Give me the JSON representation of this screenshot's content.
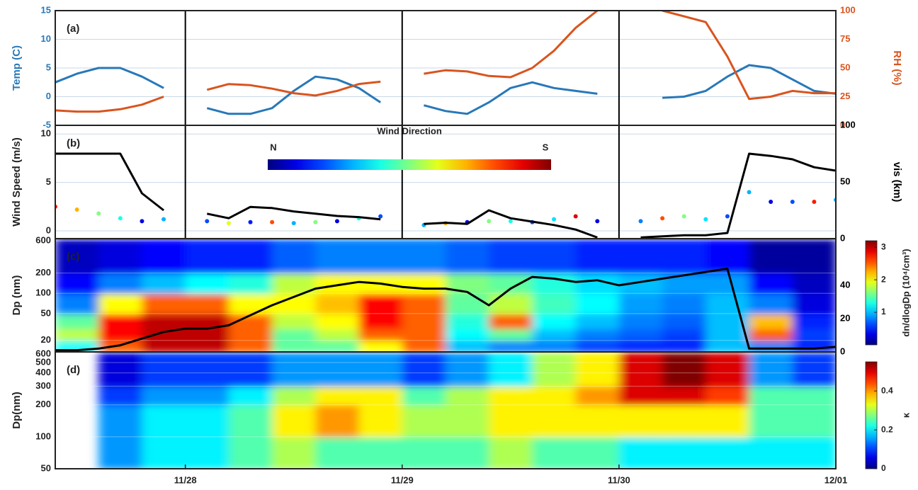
{
  "chart_data": [
    {
      "type": "line",
      "panel_label": "(a)",
      "ylabel": "Temp (C)",
      "y2label": "RH (%)",
      "day_lines": true,
      "xlim": [
        27.4,
        31.0
      ],
      "ylim": [
        -5,
        15
      ],
      "yticks": [
        -5,
        0,
        5,
        10,
        15
      ],
      "y2lim": [
        0,
        100
      ],
      "y2ticks": [
        0,
        25,
        50,
        75,
        100
      ],
      "grid": true,
      "x": [
        27.4,
        27.5,
        27.6,
        27.7,
        27.8,
        27.9,
        28.0,
        28.1,
        28.2,
        28.3,
        28.4,
        28.5,
        28.6,
        28.7,
        28.8,
        28.9,
        29.0,
        29.1,
        29.2,
        29.3,
        29.4,
        29.5,
        29.6,
        29.7,
        29.8,
        29.9,
        30.0,
        30.1,
        30.2,
        30.3,
        30.4,
        30.5,
        30.6,
        30.7,
        30.8,
        30.9,
        31.0
      ],
      "series": [
        {
          "type": "line",
          "color": "#2878b8",
          "values": [
            2.5,
            4,
            5,
            5,
            3.5,
            1.5,
            null,
            -2,
            -3,
            -3,
            -2,
            1,
            3.5,
            3,
            1.5,
            -1,
            null,
            -1.5,
            -2.5,
            -3,
            -1,
            1.5,
            2.5,
            1.5,
            1,
            0.5,
            null,
            null,
            -0.2,
            0,
            1,
            3.5,
            5.5,
            5,
            3,
            1,
            0.5
          ]
        },
        {
          "type": "line",
          "axis": "y2",
          "color": "#d9541e",
          "values": [
            13,
            12,
            12,
            14,
            18,
            25,
            null,
            31,
            36,
            35,
            32,
            28,
            26,
            30,
            36,
            38,
            null,
            45,
            48,
            47,
            43,
            42,
            50,
            65,
            85,
            100,
            null,
            null,
            100,
            95,
            90,
            60,
            23,
            25,
            30,
            28,
            28
          ]
        }
      ]
    },
    {
      "type": "line",
      "panel_label": "(b)",
      "ylabel": "Wind Speed (m/s)",
      "y2label": "vis (km)",
      "day_lines": true,
      "xlim": [
        27.4,
        31.0
      ],
      "ylim": [
        -0.8,
        10.9
      ],
      "yticks": [
        0,
        5,
        10
      ],
      "y2lim": [
        0,
        100
      ],
      "y2ticks": [
        0,
        50,
        100
      ],
      "grid": true,
      "colorbar": {
        "label": "Wind Direction",
        "ticks": [
          {
            "value": 0,
            "label": "N"
          },
          {
            "value": 1,
            "label": "S"
          }
        ]
      },
      "x": [
        27.4,
        27.5,
        27.6,
        27.7,
        27.8,
        27.9,
        28.0,
        28.1,
        28.2,
        28.3,
        28.4,
        28.5,
        28.6,
        28.7,
        28.8,
        28.9,
        29.0,
        29.1,
        29.2,
        29.3,
        29.4,
        29.5,
        29.6,
        29.7,
        29.8,
        29.9,
        30.0,
        30.1,
        30.2,
        30.3,
        30.4,
        30.5,
        30.6,
        30.7,
        30.8,
        30.9,
        31.0
      ],
      "series": [
        {
          "type": "scatter",
          "values": [
            2.5,
            2.2,
            1.8,
            1.3,
            1.0,
            1.2,
            null,
            1.0,
            0.8,
            0.9,
            0.9,
            0.8,
            0.9,
            1.0,
            1.3,
            1.5,
            null,
            0.6,
            0.8,
            0.9,
            1.0,
            1.0,
            0.9,
            1.2,
            1.5,
            1.0,
            null,
            1.0,
            1.3,
            1.5,
            1.2,
            1.5,
            4,
            3,
            3,
            3,
            3.2
          ],
          "color_values": [
            0.85,
            0.7,
            0.5,
            0.4,
            0.1,
            0.3,
            null,
            0.2,
            0.6,
            0.15,
            0.8,
            0.3,
            0.5,
            0.1,
            0.4,
            0.2,
            null,
            0.3,
            0.7,
            0.1,
            0.5,
            0.4,
            0.2,
            0.35,
            0.9,
            0.1,
            null,
            0.25,
            0.8,
            0.5,
            0.35,
            0.2,
            0.3,
            0.1,
            0.2,
            0.85,
            0.3
          ]
        },
        {
          "type": "line",
          "axis": "y2",
          "color": "#000000",
          "values": [
            75,
            75,
            75,
            75,
            40,
            25,
            null,
            22,
            18,
            28,
            27,
            24,
            22,
            20,
            19,
            17,
            null,
            13,
            14,
            13,
            25,
            18,
            15,
            12,
            8,
            1,
            null,
            1,
            2,
            3,
            3,
            5,
            75,
            73,
            70,
            63,
            60
          ]
        }
      ]
    },
    {
      "type": "heatmap",
      "panel_label": "(c)",
      "ylabel": "Dp (nm)",
      "log_y": true,
      "xlim": [
        27.4,
        31.0
      ],
      "ylim": [
        13.5,
        650
      ],
      "yticks": [
        20,
        50,
        100,
        200,
        600
      ],
      "y2lim": [
        0,
        68
      ],
      "y2ticks": [
        0,
        20,
        40
      ],
      "grid": true,
      "colorbar": {
        "label": "dn/dlogDp (10⁴/cm³)",
        "lim": [
          0,
          3.2
        ],
        "ticks": [
          1,
          2,
          3
        ]
      },
      "x_edges": [
        27.4,
        27.6,
        27.8,
        28.0,
        28.2,
        28.4,
        28.6,
        28.8,
        29.0,
        29.2,
        29.4,
        29.6,
        29.8,
        30.0,
        30.2,
        30.4,
        30.6,
        30.8,
        31.0
      ],
      "y_edges": [
        13.5,
        20,
        30,
        50,
        100,
        200,
        650
      ],
      "z": [
        [
          1.2,
          2.5,
          3,
          3,
          2.5,
          1.5,
          1.5,
          2,
          2.5,
          1.0,
          0.8,
          0.8,
          0.6,
          0.5,
          0.5,
          1,
          0.8,
          0.5
        ],
        [
          1.8,
          2.8,
          3,
          3,
          2.5,
          1.5,
          1.8,
          2.5,
          2.5,
          1.2,
          1.5,
          1,
          0.8,
          0.7,
          0.6,
          1,
          2.5,
          0.6
        ],
        [
          1.5,
          2.8,
          3,
          3,
          2.5,
          1.8,
          2,
          2.8,
          2.5,
          1.3,
          2.5,
          1.2,
          1,
          0.8,
          0.7,
          1,
          2.2,
          0.5
        ],
        [
          0.8,
          2,
          2.5,
          2.5,
          2,
          2,
          2.2,
          2.8,
          2.5,
          1.5,
          1.8,
          1.4,
          1.2,
          0.9,
          0.8,
          1,
          0.8,
          0.3
        ],
        [
          0.4,
          0.8,
          1,
          1.2,
          1.3,
          1.8,
          2,
          2,
          2,
          1.6,
          1.5,
          1.3,
          1.1,
          1,
          0.9,
          0.9,
          0.4,
          0.2
        ],
        [
          0.2,
          0.3,
          0.4,
          0.5,
          0.5,
          0.7,
          0.8,
          0.8,
          0.8,
          0.7,
          0.6,
          0.6,
          0.5,
          0.5,
          0.5,
          0.4,
          0.1,
          0.1
        ]
      ],
      "x": [
        27.4,
        27.5,
        27.6,
        27.7,
        27.8,
        27.9,
        28.0,
        28.1,
        28.2,
        28.3,
        28.4,
        28.5,
        28.6,
        28.7,
        28.8,
        28.9,
        29.0,
        29.1,
        29.2,
        29.3,
        29.4,
        29.5,
        29.6,
        29.7,
        29.8,
        29.9,
        30.0,
        30.1,
        30.2,
        30.3,
        30.4,
        30.5,
        30.6,
        30.7,
        30.8,
        30.9,
        31.0
      ],
      "series": [
        {
          "type": "line",
          "axis": "y2",
          "color": "#000000",
          "values": [
            1,
            1,
            2,
            4,
            8,
            12,
            14,
            14,
            16,
            22,
            28,
            33,
            38,
            40,
            42,
            41,
            39,
            38,
            38,
            36,
            28,
            38,
            45,
            44,
            42,
            43,
            40,
            42,
            44,
            46,
            48,
            50,
            2,
            2,
            2,
            2,
            3
          ]
        }
      ]
    },
    {
      "type": "heatmap",
      "panel_label": "(d)",
      "ylabel": "Dp(nm)",
      "log_y": true,
      "xlim": [
        27.4,
        31.0
      ],
      "ylim": [
        50,
        630
      ],
      "yticks": [
        50,
        100,
        200,
        300,
        400,
        500,
        600
      ],
      "grid": true,
      "xticks": [
        {
          "value": 28,
          "label": "11/28"
        },
        {
          "value": 29,
          "label": "11/29"
        },
        {
          "value": 30,
          "label": "11/30"
        },
        {
          "value": 31,
          "label": "12/01"
        }
      ],
      "colorbar": {
        "label": "κ",
        "lim": [
          0,
          0.55
        ],
        "ticks": [
          0,
          0.2,
          0.4
        ]
      },
      "x_edges": [
        27.4,
        27.6,
        27.8,
        28.0,
        28.2,
        28.4,
        28.6,
        28.8,
        29.0,
        29.2,
        29.4,
        29.6,
        29.8,
        30.0,
        30.2,
        30.4,
        30.6,
        30.8,
        31.0
      ],
      "y_edges": [
        50,
        100,
        200,
        300,
        630
      ],
      "z": [
        [
          null,
          0.15,
          0.2,
          0.2,
          0.25,
          0.3,
          0.25,
          0.25,
          0.25,
          0.25,
          0.3,
          0.25,
          0.25,
          0.2,
          0.2,
          0.2,
          0.2,
          0.2
        ],
        [
          null,
          0.15,
          0.2,
          0.2,
          0.25,
          0.35,
          0.4,
          0.35,
          0.3,
          0.3,
          0.35,
          0.35,
          0.35,
          0.35,
          0.35,
          0.35,
          0.25,
          0.25
        ],
        [
          null,
          0.1,
          0.15,
          0.15,
          0.2,
          0.3,
          0.35,
          0.35,
          0.25,
          0.3,
          0.35,
          0.35,
          0.4,
          0.5,
          0.5,
          0.45,
          0.25,
          0.25
        ],
        [
          null,
          0.05,
          0.1,
          0.1,
          0.1,
          0.15,
          0.15,
          0.15,
          0.1,
          0.15,
          0.2,
          0.3,
          0.35,
          0.5,
          0.55,
          0.5,
          0.15,
          0.1
        ]
      ]
    }
  ]
}
